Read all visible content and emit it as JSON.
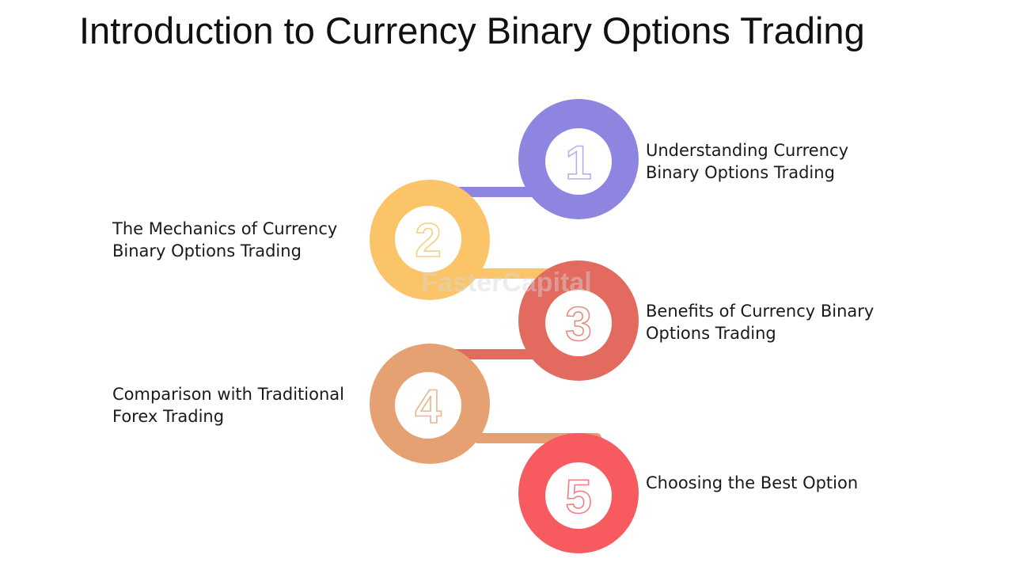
{
  "title": "Introduction to Currency Binary Options Trading",
  "watermark": "FasterCapital",
  "steps": [
    {
      "number": "1",
      "line1": "Understanding Currency",
      "line2": "Binary Options Trading",
      "color": "#8e85e0",
      "numColor": "#b7b0ee"
    },
    {
      "number": "2",
      "line1": "The Mechanics of Currency",
      "line2": "Binary Options Trading",
      "color": "#fbc468",
      "numColor": "#f6cf86"
    },
    {
      "number": "3",
      "line1": "Benefits of Currency Binary",
      "line2": "Options Trading",
      "color": "#e26a5e",
      "numColor": "#e88b82"
    },
    {
      "number": "4",
      "line1": "Comparison with Traditional",
      "line2": "Forex Trading",
      "color": "#e5a172",
      "numColor": "#eab48c"
    },
    {
      "number": "5",
      "line1": "Choosing the Best Option",
      "line2": "",
      "color": "#f75a5f",
      "numColor": "#f27f83"
    }
  ]
}
